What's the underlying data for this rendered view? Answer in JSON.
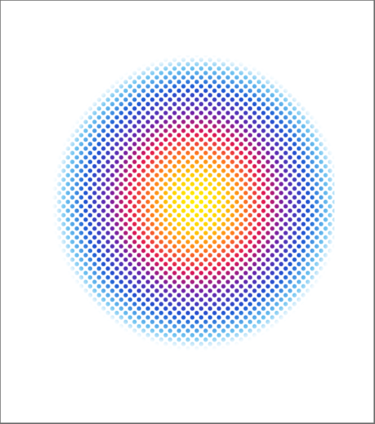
{
  "image": {
    "subject": "halftone-dot-blob-heatmap",
    "colors": {
      "background": "#ffffff",
      "frame_border": "#6f6f6f",
      "core": "#fff200",
      "inner": "#ff9a1a",
      "mid": "#e0134f",
      "outer_mid": "#6a1fa8",
      "outer": "#1f4fd0",
      "edge": "#1aa0e8"
    }
  }
}
